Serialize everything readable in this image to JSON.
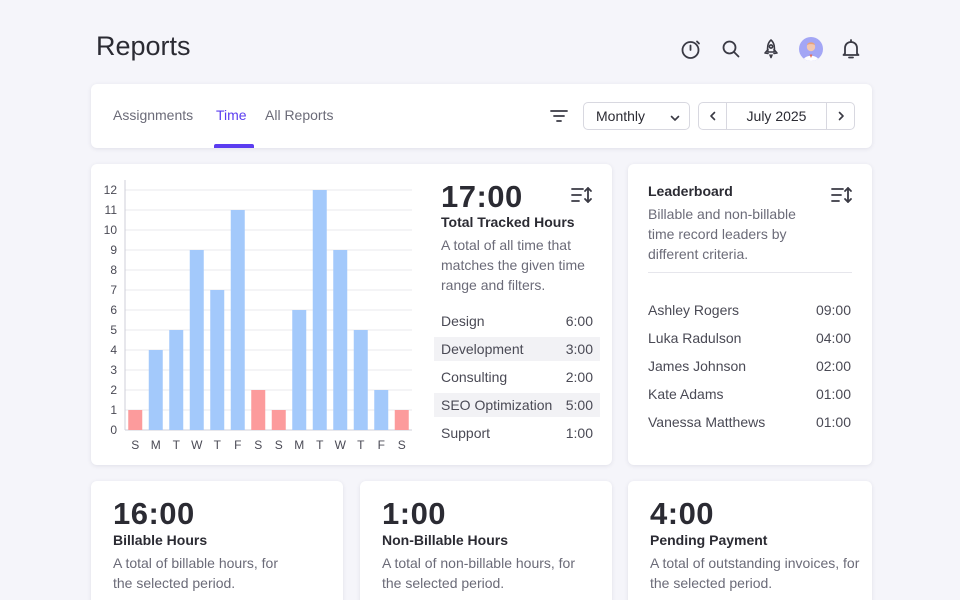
{
  "page": {
    "title": "Reports"
  },
  "header_icons": [
    "stopwatch-icon",
    "search-icon",
    "rocket-icon",
    "avatar",
    "bell-icon"
  ],
  "nav": {
    "tabs": [
      {
        "label": "Assignments",
        "active": false
      },
      {
        "label": "Time",
        "active": true
      },
      {
        "label": "All Reports",
        "active": false
      }
    ],
    "period": {
      "selected": "Monthly"
    },
    "date_label": "July 2025"
  },
  "colors": {
    "accent": "#5b3df0",
    "bar_weekday": "#a3c9fb",
    "bar_weekend": "#fc9b9c"
  },
  "chart_data": {
    "type": "bar",
    "categories": [
      "S",
      "M",
      "T",
      "W",
      "T",
      "F",
      "S",
      "S",
      "M",
      "T",
      "W",
      "T",
      "F",
      "S"
    ],
    "values": [
      1,
      4,
      5,
      9,
      7,
      11,
      2,
      1,
      6,
      12,
      9,
      5,
      2,
      1
    ],
    "weekend": [
      true,
      false,
      false,
      false,
      false,
      false,
      true,
      true,
      false,
      false,
      false,
      false,
      false,
      true
    ],
    "ylim": [
      0,
      12
    ],
    "yticks": [
      0,
      1,
      2,
      3,
      4,
      5,
      6,
      7,
      8,
      9,
      10,
      11,
      12
    ],
    "grid": true,
    "title": "",
    "xlabel": "",
    "ylabel": ""
  },
  "total": {
    "value": "17:00",
    "title": "Total Tracked Hours",
    "description": "A total of all time that matches the given time range and filters."
  },
  "categories": [
    {
      "name": "Design",
      "time": "6:00"
    },
    {
      "name": "Development",
      "time": "3:00"
    },
    {
      "name": "Consulting",
      "time": "2:00"
    },
    {
      "name": "SEO Optimization",
      "time": "5:00"
    },
    {
      "name": "Support",
      "time": "1:00"
    }
  ],
  "leaderboard": {
    "title": "Leaderboard",
    "description": "Billable and non-billable time record leaders by different criteria.",
    "entries": [
      {
        "name": "Ashley Rogers",
        "time": "09:00"
      },
      {
        "name": "Luka Radulson",
        "time": "04:00"
      },
      {
        "name": "James Johnson",
        "time": "02:00"
      },
      {
        "name": "Kate Adams",
        "time": "01:00"
      },
      {
        "name": "Vanessa Matthews",
        "time": "01:00"
      }
    ]
  },
  "stats": [
    {
      "value": "16:00",
      "title": "Billable Hours",
      "description": "A total of billable hours, for the selected period."
    },
    {
      "value": "1:00",
      "title": "Non-Billable Hours",
      "description": "A total of non-billable hours, for the selected period."
    },
    {
      "value": "4:00",
      "title": "Pending Payment",
      "description": "A total of outstanding invoices, for the selected period."
    }
  ]
}
